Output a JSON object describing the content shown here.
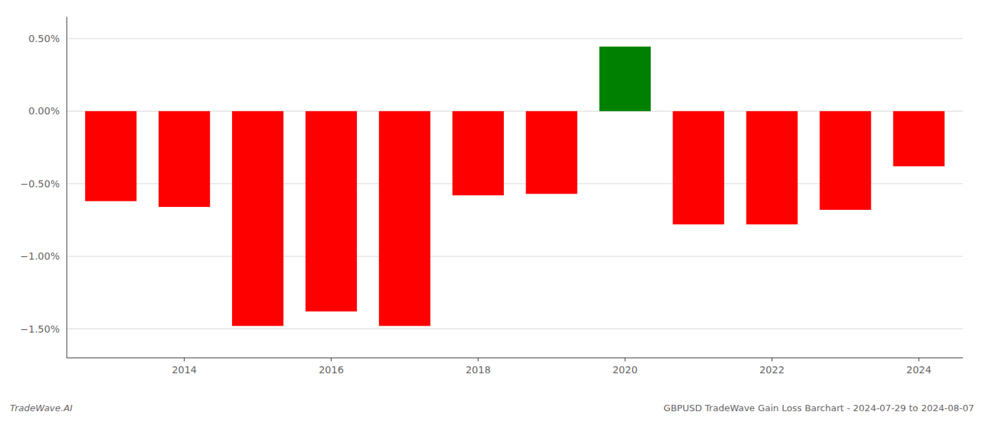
{
  "chart_data": {
    "type": "bar",
    "title": "GBPUSD TradeWave Gain Loss Barchart - 2024-07-29 to 2024-08-07",
    "annotations": [
      {
        "text": "TradeWave.AI"
      }
    ],
    "x": [
      2013,
      2014,
      2015,
      2016,
      2017,
      2018,
      2019,
      2020,
      2021,
      2022,
      2023,
      2024
    ],
    "values": [
      -0.0062,
      -0.0066,
      -0.0148,
      -0.0138,
      -0.0148,
      -0.0058,
      -0.0057,
      0.00445,
      -0.0078,
      -0.0078,
      -0.0068,
      -0.0038
    ],
    "colors": [
      "#ff0000",
      "#ff0000",
      "#ff0000",
      "#ff0000",
      "#ff0000",
      "#ff0000",
      "#ff0000",
      "#008000",
      "#ff0000",
      "#ff0000",
      "#ff0000",
      "#ff0000"
    ],
    "xlim": [
      2012.4,
      2024.6
    ],
    "xticks": [
      2014,
      2016,
      2018,
      2020,
      2022,
      2024
    ],
    "ylim": [
      -0.017,
      0.0065
    ],
    "yticks": [
      {
        "value": 0.005,
        "label": "0.50%"
      },
      {
        "value": 0.0,
        "label": "0.00%"
      },
      {
        "value": -0.005,
        "label": "−0.50%"
      },
      {
        "value": -0.01,
        "label": "−1.00%"
      },
      {
        "value": -0.015,
        "label": "−1.50%"
      }
    ],
    "grid": true
  }
}
